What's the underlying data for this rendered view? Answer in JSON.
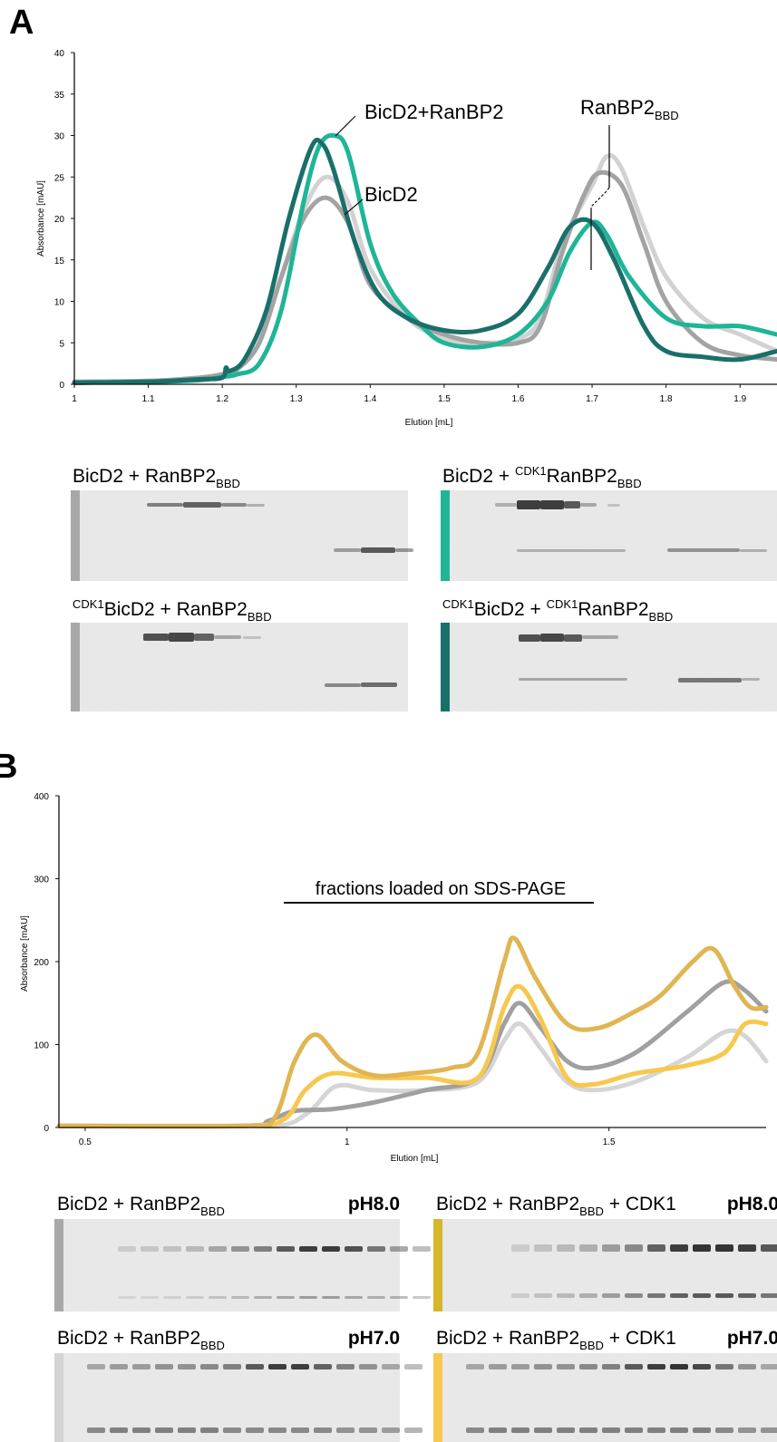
{
  "panel_a": {
    "letter": "A",
    "annotations": {
      "complex": "BicD2+RanBP2",
      "bicd2": "BicD2",
      "ranbp2_main": "RanBP2",
      "ranbp2_sub": "BBD"
    },
    "gels": [
      {
        "parts": [
          [
            "",
            "BicD2 + RanBP2"
          ],
          [
            "sub",
            "BBD"
          ]
        ],
        "marker_color": "#a8a8a8"
      },
      {
        "parts": [
          [
            "",
            "BicD2 + "
          ],
          [
            "sup",
            "CDK1"
          ],
          [
            "",
            "RanBP2"
          ],
          [
            "sub",
            "BBD"
          ]
        ],
        "marker_color": "#1fb597"
      },
      {
        "parts": [
          [
            "sup",
            "CDK1"
          ],
          [
            "",
            "BicD2 + RanBP2"
          ],
          [
            "sub",
            "BBD"
          ]
        ],
        "marker_color": "#a8a8a8"
      },
      {
        "parts": [
          [
            "sup",
            "CDK1"
          ],
          [
            "",
            "BicD2 + "
          ],
          [
            "sup",
            "CDK1"
          ],
          [
            "",
            "RanBP2"
          ],
          [
            "sub",
            "BBD"
          ]
        ],
        "marker_color": "#1a6f6a"
      }
    ]
  },
  "panel_b": {
    "letter": "B",
    "bracket_label": "fractions loaded on SDS-PAGE",
    "gels": [
      {
        "parts": [
          [
            "",
            "BicD2 + RanBP2"
          ],
          [
            "sub",
            "BBD"
          ]
        ],
        "ph": "pH8.0",
        "marker_color": "#a8a8a8"
      },
      {
        "parts": [
          [
            "",
            "BicD2 + RanBP2"
          ],
          [
            "sub",
            "BBD"
          ],
          [
            "",
            " + CDK1"
          ]
        ],
        "ph": "pH8.0",
        "marker_color": "#d6b62a"
      },
      {
        "parts": [
          [
            "",
            "BicD2 + RanBP2"
          ],
          [
            "sub",
            "BBD"
          ]
        ],
        "ph": "pH7.0",
        "marker_color": "#d4d4d4"
      },
      {
        "parts": [
          [
            "",
            "BicD2 + RanBP2"
          ],
          [
            "sub",
            "BBD"
          ],
          [
            "",
            " + CDK1"
          ]
        ],
        "ph": "pH7.0",
        "marker_color": "#f7c84e"
      }
    ]
  },
  "chart_data": [
    {
      "type": "line",
      "xlabel": "Elution [mL]",
      "ylabel": "Absorbance [mAU]",
      "xlim": [
        1.0,
        1.95
      ],
      "ylim": [
        0,
        40
      ],
      "xticks": [
        "1",
        "1.1",
        "1.2",
        "1.3",
        "1.4",
        "1.5",
        "1.6",
        "1.7",
        "1.8",
        "1.9"
      ],
      "yticks": [
        "0",
        "5",
        "10",
        "15",
        "20",
        "25",
        "30",
        "35",
        "40"
      ],
      "series": [
        {
          "color": "#d2d2d2",
          "points": [
            [
              1.0,
              0.3
            ],
            [
              1.1,
              0.4
            ],
            [
              1.17,
              0.8
            ],
            [
              1.2,
              1.2
            ],
            [
              1.22,
              1.8
            ],
            [
              1.25,
              5
            ],
            [
              1.28,
              13
            ],
            [
              1.31,
              21
            ],
            [
              1.34,
              25
            ],
            [
              1.37,
              22
            ],
            [
              1.4,
              14
            ],
            [
              1.45,
              8
            ],
            [
              1.5,
              5.5
            ],
            [
              1.55,
              5
            ],
            [
              1.6,
              5.5
            ],
            [
              1.63,
              8
            ],
            [
              1.66,
              17
            ],
            [
              1.7,
              24
            ],
            [
              1.72,
              27.5
            ],
            [
              1.74,
              26
            ],
            [
              1.77,
              19
            ],
            [
              1.8,
              13
            ],
            [
              1.85,
              8
            ],
            [
              1.9,
              6
            ],
            [
              1.95,
              4
            ]
          ]
        },
        {
          "color": "#a3a3a3",
          "points": [
            [
              1.0,
              0.3
            ],
            [
              1.1,
              0.4
            ],
            [
              1.17,
              0.8
            ],
            [
              1.2,
              1.2
            ],
            [
              1.22,
              1.8
            ],
            [
              1.25,
              5
            ],
            [
              1.28,
              13
            ],
            [
              1.31,
              20
            ],
            [
              1.34,
              22.5
            ],
            [
              1.37,
              19.5
            ],
            [
              1.4,
              12
            ],
            [
              1.45,
              8
            ],
            [
              1.5,
              6
            ],
            [
              1.55,
              5
            ],
            [
              1.6,
              5
            ],
            [
              1.63,
              7
            ],
            [
              1.66,
              16
            ],
            [
              1.69,
              23
            ],
            [
              1.71,
              25.5
            ],
            [
              1.74,
              24
            ],
            [
              1.77,
              17
            ],
            [
              1.8,
              10
            ],
            [
              1.85,
              5
            ],
            [
              1.9,
              3.5
            ],
            [
              1.95,
              3
            ]
          ]
        },
        {
          "color": "#1fb597",
          "points": [
            [
              1.0,
              0.2
            ],
            [
              1.1,
              0.3
            ],
            [
              1.17,
              0.5
            ],
            [
              1.2,
              0.9
            ],
            [
              1.22,
              1.2
            ],
            [
              1.25,
              2.5
            ],
            [
              1.28,
              9
            ],
            [
              1.31,
              22
            ],
            [
              1.33,
              28.5
            ],
            [
              1.35,
              30
            ],
            [
              1.37,
              28
            ],
            [
              1.4,
              17
            ],
            [
              1.43,
              11
            ],
            [
              1.47,
              7
            ],
            [
              1.5,
              5
            ],
            [
              1.55,
              4.5
            ],
            [
              1.6,
              6
            ],
            [
              1.64,
              10
            ],
            [
              1.67,
              16
            ],
            [
              1.7,
              19.5
            ],
            [
              1.72,
              18
            ],
            [
              1.75,
              13
            ],
            [
              1.8,
              8
            ],
            [
              1.85,
              7
            ],
            [
              1.9,
              7
            ],
            [
              1.95,
              6
            ]
          ]
        },
        {
          "color": "#1a6f6a",
          "points": [
            [
              1.0,
              0.2
            ],
            [
              1.1,
              0.3
            ],
            [
              1.17,
              0.6
            ],
            [
              1.2,
              0.8
            ],
            [
              1.205,
              2.0
            ],
            [
              1.21,
              1.6
            ],
            [
              1.23,
              3
            ],
            [
              1.26,
              9
            ],
            [
              1.29,
              20
            ],
            [
              1.32,
              28.5
            ],
            [
              1.335,
              29
            ],
            [
              1.35,
              26
            ],
            [
              1.38,
              17
            ],
            [
              1.41,
              11
            ],
            [
              1.45,
              8
            ],
            [
              1.5,
              6.5
            ],
            [
              1.55,
              6.5
            ],
            [
              1.6,
              8.5
            ],
            [
              1.64,
              14
            ],
            [
              1.67,
              19
            ],
            [
              1.7,
              19.5
            ],
            [
              1.73,
              15
            ],
            [
              1.77,
              7
            ],
            [
              1.8,
              4
            ],
            [
              1.85,
              3.3
            ],
            [
              1.9,
              3
            ],
            [
              1.95,
              4
            ]
          ]
        }
      ]
    },
    {
      "type": "line",
      "xlabel": "Elution [mL]",
      "ylabel": "Absorbance [mAU]",
      "xlim": [
        0.45,
        1.8
      ],
      "ylim": [
        0,
        400
      ],
      "xticks": [
        "0.5",
        "1",
        "1.5"
      ],
      "yticks": [
        "0",
        "100",
        "200",
        "300",
        "400"
      ],
      "series": [
        {
          "color": "#d5d5d5",
          "points": [
            [
              0.45,
              2
            ],
            [
              0.8,
              2
            ],
            [
              0.88,
              3
            ],
            [
              0.93,
              20
            ],
            [
              0.98,
              50
            ],
            [
              1.05,
              45
            ],
            [
              1.15,
              45
            ],
            [
              1.25,
              55
            ],
            [
              1.3,
              105
            ],
            [
              1.33,
              125
            ],
            [
              1.37,
              95
            ],
            [
              1.42,
              55
            ],
            [
              1.47,
              45
            ],
            [
              1.55,
              55
            ],
            [
              1.65,
              85
            ],
            [
              1.72,
              115
            ],
            [
              1.76,
              110
            ],
            [
              1.8,
              80
            ]
          ]
        },
        {
          "color": "#a0a0a0",
          "points": [
            [
              0.45,
              2
            ],
            [
              0.8,
              2
            ],
            [
              0.85,
              8
            ],
            [
              0.9,
              20
            ],
            [
              0.97,
              22
            ],
            [
              1.05,
              30
            ],
            [
              1.15,
              45
            ],
            [
              1.25,
              60
            ],
            [
              1.3,
              125
            ],
            [
              1.33,
              150
            ],
            [
              1.37,
              120
            ],
            [
              1.42,
              80
            ],
            [
              1.47,
              72
            ],
            [
              1.55,
              90
            ],
            [
              1.65,
              140
            ],
            [
              1.72,
              175
            ],
            [
              1.76,
              165
            ],
            [
              1.8,
              140
            ]
          ]
        },
        {
          "color": "#f7c84e",
          "points": [
            [
              0.45,
              2
            ],
            [
              0.8,
              2
            ],
            [
              0.88,
              10
            ],
            [
              0.92,
              45
            ],
            [
              0.97,
              65
            ],
            [
              1.05,
              60
            ],
            [
              1.15,
              60
            ],
            [
              1.25,
              60
            ],
            [
              1.3,
              145
            ],
            [
              1.33,
              170
            ],
            [
              1.37,
              130
            ],
            [
              1.42,
              60
            ],
            [
              1.47,
              52
            ],
            [
              1.55,
              65
            ],
            [
              1.65,
              75
            ],
            [
              1.72,
              90
            ],
            [
              1.76,
              125
            ],
            [
              1.8,
              125
            ]
          ]
        },
        {
          "color": "#e0b552",
          "points": [
            [
              0.45,
              2
            ],
            [
              0.8,
              2
            ],
            [
              0.86,
              10
            ],
            [
              0.9,
              80
            ],
            [
              0.94,
              112
            ],
            [
              0.99,
              80
            ],
            [
              1.05,
              63
            ],
            [
              1.12,
              65
            ],
            [
              1.2,
              72
            ],
            [
              1.25,
              90
            ],
            [
              1.3,
              200
            ],
            [
              1.32,
              228
            ],
            [
              1.36,
              180
            ],
            [
              1.42,
              125
            ],
            [
              1.48,
              120
            ],
            [
              1.55,
              140
            ],
            [
              1.6,
              160
            ],
            [
              1.66,
              200
            ],
            [
              1.7,
              215
            ],
            [
              1.74,
              170
            ],
            [
              1.77,
              145
            ],
            [
              1.8,
              145
            ]
          ]
        }
      ]
    }
  ]
}
